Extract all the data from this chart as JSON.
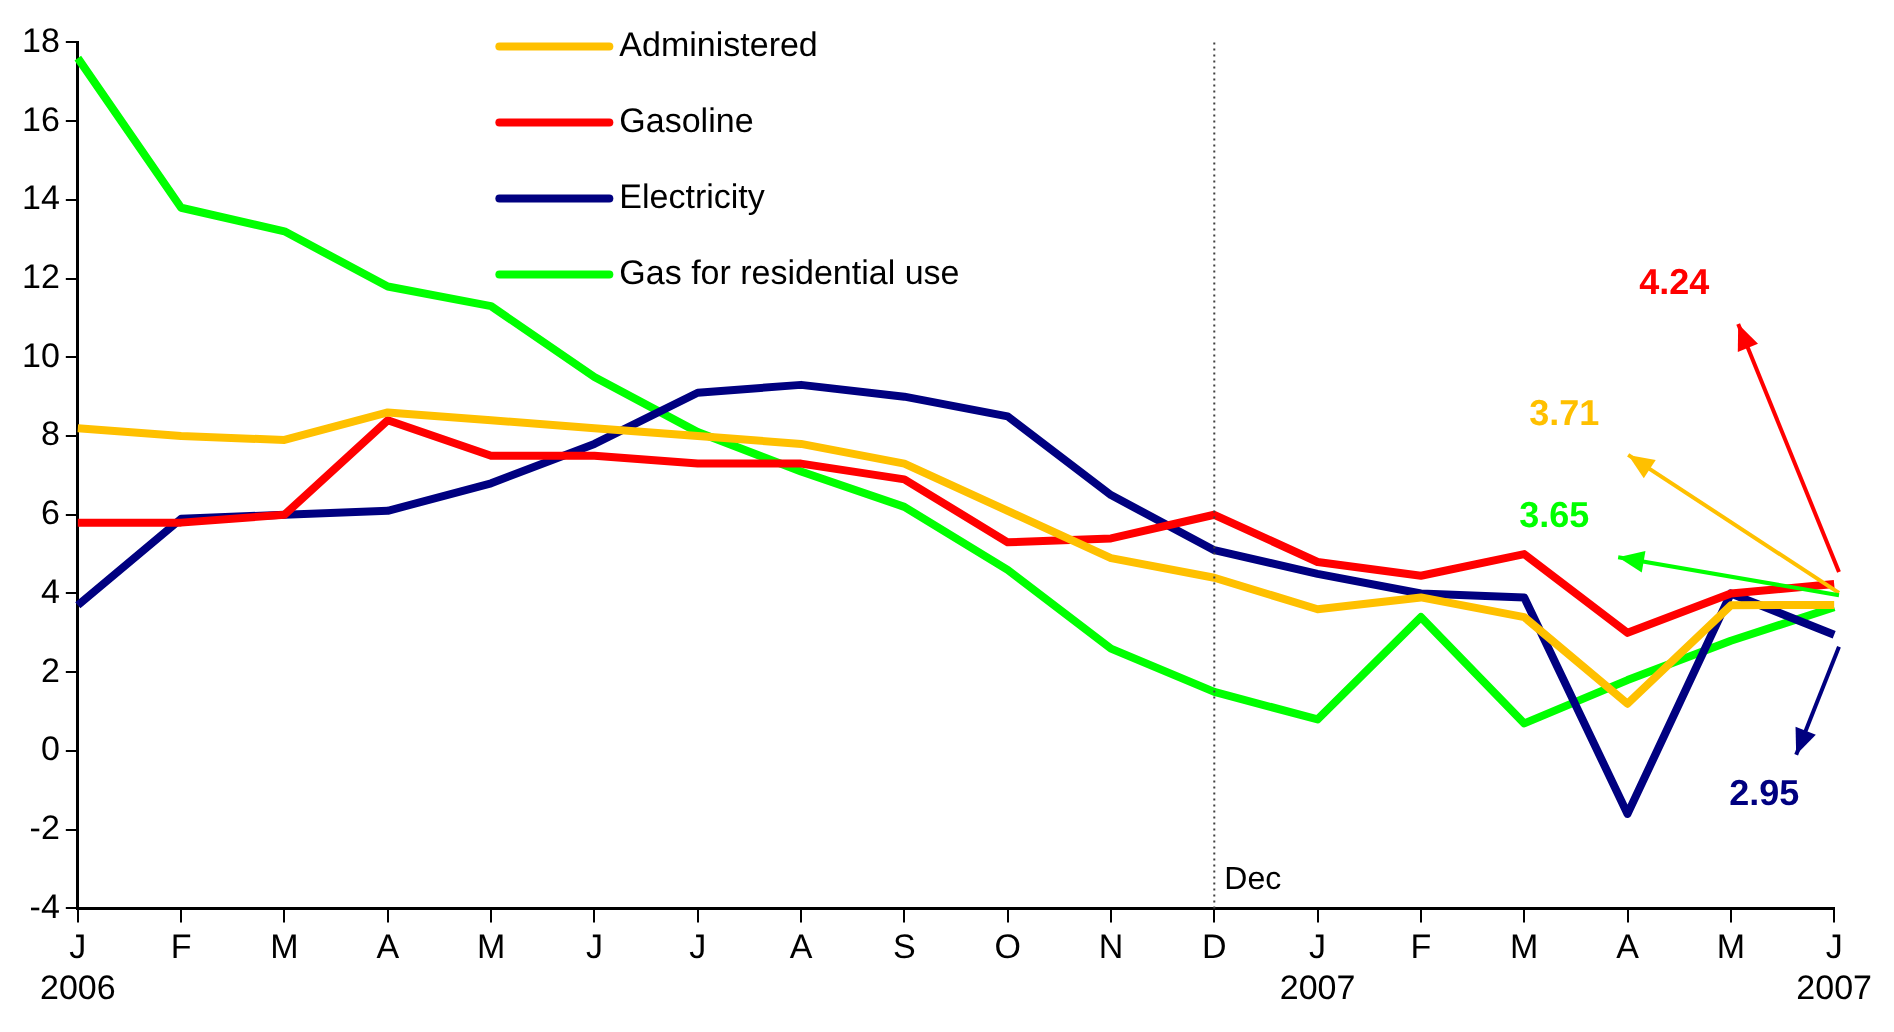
{
  "chart_data": {
    "type": "line",
    "categories": [
      "J\n2006",
      "F",
      "M",
      "A",
      "M",
      "J",
      "J",
      "A",
      "S",
      "O",
      "N",
      "D",
      "J\n2007",
      "F",
      "M",
      "A",
      "M",
      "J\n2007"
    ],
    "series": [
      {
        "name": "Administered",
        "color": "#ffc000",
        "values": [
          8.2,
          8.0,
          7.9,
          8.6,
          8.4,
          8.2,
          8.0,
          7.8,
          7.3,
          6.1,
          4.9,
          4.4,
          3.6,
          3.9,
          3.4,
          1.2,
          3.7,
          3.71
        ]
      },
      {
        "name": "Gasoline",
        "color": "#ff0000",
        "values": [
          5.8,
          5.8,
          6.0,
          8.4,
          7.5,
          7.5,
          7.3,
          7.3,
          6.9,
          5.3,
          5.4,
          6.0,
          4.8,
          4.45,
          5.0,
          3.0,
          4.0,
          4.24
        ]
      },
      {
        "name": "Electricity",
        "color": "#000080",
        "values": [
          3.7,
          5.9,
          6.0,
          6.1,
          6.8,
          7.8,
          9.1,
          9.3,
          9.0,
          8.5,
          6.5,
          5.1,
          4.5,
          4.0,
          3.9,
          -1.6,
          4.0,
          2.95
        ]
      },
      {
        "name": "Gas for residential use",
        "color": "#00ff00",
        "values": [
          17.6,
          13.8,
          13.2,
          11.8,
          11.3,
          9.5,
          8.1,
          7.1,
          6.2,
          4.6,
          2.6,
          1.5,
          0.8,
          3.4,
          0.7,
          1.8,
          2.8,
          3.65
        ]
      }
    ],
    "ylim": [
      -4,
      18
    ],
    "yticks": [
      -4,
      -2,
      0,
      2,
      4,
      6,
      8,
      10,
      12,
      14,
      16,
      18
    ],
    "grid": false,
    "legend": "top",
    "marker": "none",
    "line_style": "solid",
    "ref_lines": [
      {
        "axis": "x",
        "value": "D",
        "label": "Dec",
        "color": "#404040",
        "line_style": "dotted"
      }
    ],
    "annotations": [
      "3.71",
      "4.24",
      "2.95",
      "3.65"
    ]
  }
}
